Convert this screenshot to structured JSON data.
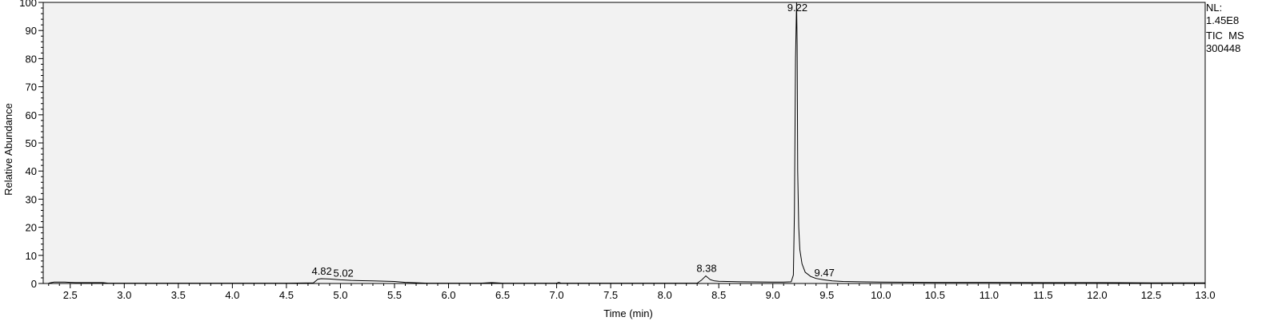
{
  "info": {
    "nl_label": "NL:",
    "nl_value": "1.45E8",
    "trace_label": "TIC  MS",
    "sample_id": "300448"
  },
  "chart_data": {
    "type": "line",
    "xlabel": "Time (min)",
    "ylabel": "Relative Abundance",
    "xlim": [
      2.25,
      13.0
    ],
    "ylim": [
      0,
      100
    ],
    "x_ticks": [
      "2.5",
      "3.0",
      "3.5",
      "4.0",
      "4.5",
      "5.0",
      "5.5",
      "6.0",
      "6.5",
      "7.0",
      "7.5",
      "8.0",
      "8.5",
      "9.0",
      "9.5",
      "10.0",
      "10.5",
      "11.0",
      "11.5",
      "12.0",
      "12.5",
      "13.0"
    ],
    "y_ticks": [
      "0",
      "10",
      "20",
      "30",
      "40",
      "50",
      "60",
      "70",
      "80",
      "90",
      "100"
    ],
    "grid": false,
    "peaks": [
      {
        "label": "4.82",
        "x": 4.82,
        "y": 1.7
      },
      {
        "label": "5.02",
        "x": 5.02,
        "y": 1.0
      },
      {
        "label": "8.38",
        "x": 8.38,
        "y": 2.7
      },
      {
        "label": "9.22",
        "x": 9.22,
        "y": 100
      },
      {
        "label": "9.47",
        "x": 9.47,
        "y": 1.2
      }
    ],
    "series": [
      {
        "color": "#000000",
        "x": [
          2.3,
          2.35,
          2.4,
          2.45,
          2.5,
          2.55,
          2.6,
          2.7,
          2.8,
          2.85,
          3.0,
          3.5,
          4.0,
          4.5,
          4.75,
          4.79,
          4.82,
          4.9,
          5.0,
          5.1,
          5.2,
          5.3,
          5.5,
          5.6,
          5.8,
          6.3,
          6.4,
          6.5,
          7.0,
          7.02,
          7.04,
          7.5,
          8.0,
          8.3,
          8.34,
          8.38,
          8.42,
          8.46,
          8.5,
          8.7,
          9.0,
          9.1,
          9.17,
          9.19,
          9.2,
          9.21,
          9.22,
          9.225,
          9.23,
          9.24,
          9.25,
          9.27,
          9.3,
          9.35,
          9.4,
          9.47,
          9.55,
          9.65,
          9.8,
          10.0,
          10.5,
          11.0,
          11.5,
          12.0,
          12.5,
          13.0
        ],
        "y": [
          0.1,
          0.5,
          0.5,
          0.5,
          0.4,
          0.3,
          0.3,
          0.3,
          0.3,
          0.1,
          0.1,
          0.1,
          0.1,
          0.1,
          0.2,
          1.5,
          1.7,
          1.6,
          1.3,
          1.1,
          1.0,
          0.9,
          0.7,
          0.4,
          0.1,
          0.1,
          0.3,
          0.1,
          0.1,
          0.4,
          0.1,
          0.1,
          0.1,
          0.1,
          1.2,
          2.7,
          1.4,
          0.9,
          0.8,
          0.6,
          0.5,
          0.5,
          0.6,
          3.0,
          25,
          80,
          100,
          85,
          40,
          20,
          12,
          7,
          4,
          2.5,
          1.8,
          1.3,
          0.9,
          0.7,
          0.6,
          0.5,
          0.4,
          0.4,
          0.3,
          0.3,
          0.2,
          0.2
        ]
      }
    ]
  }
}
